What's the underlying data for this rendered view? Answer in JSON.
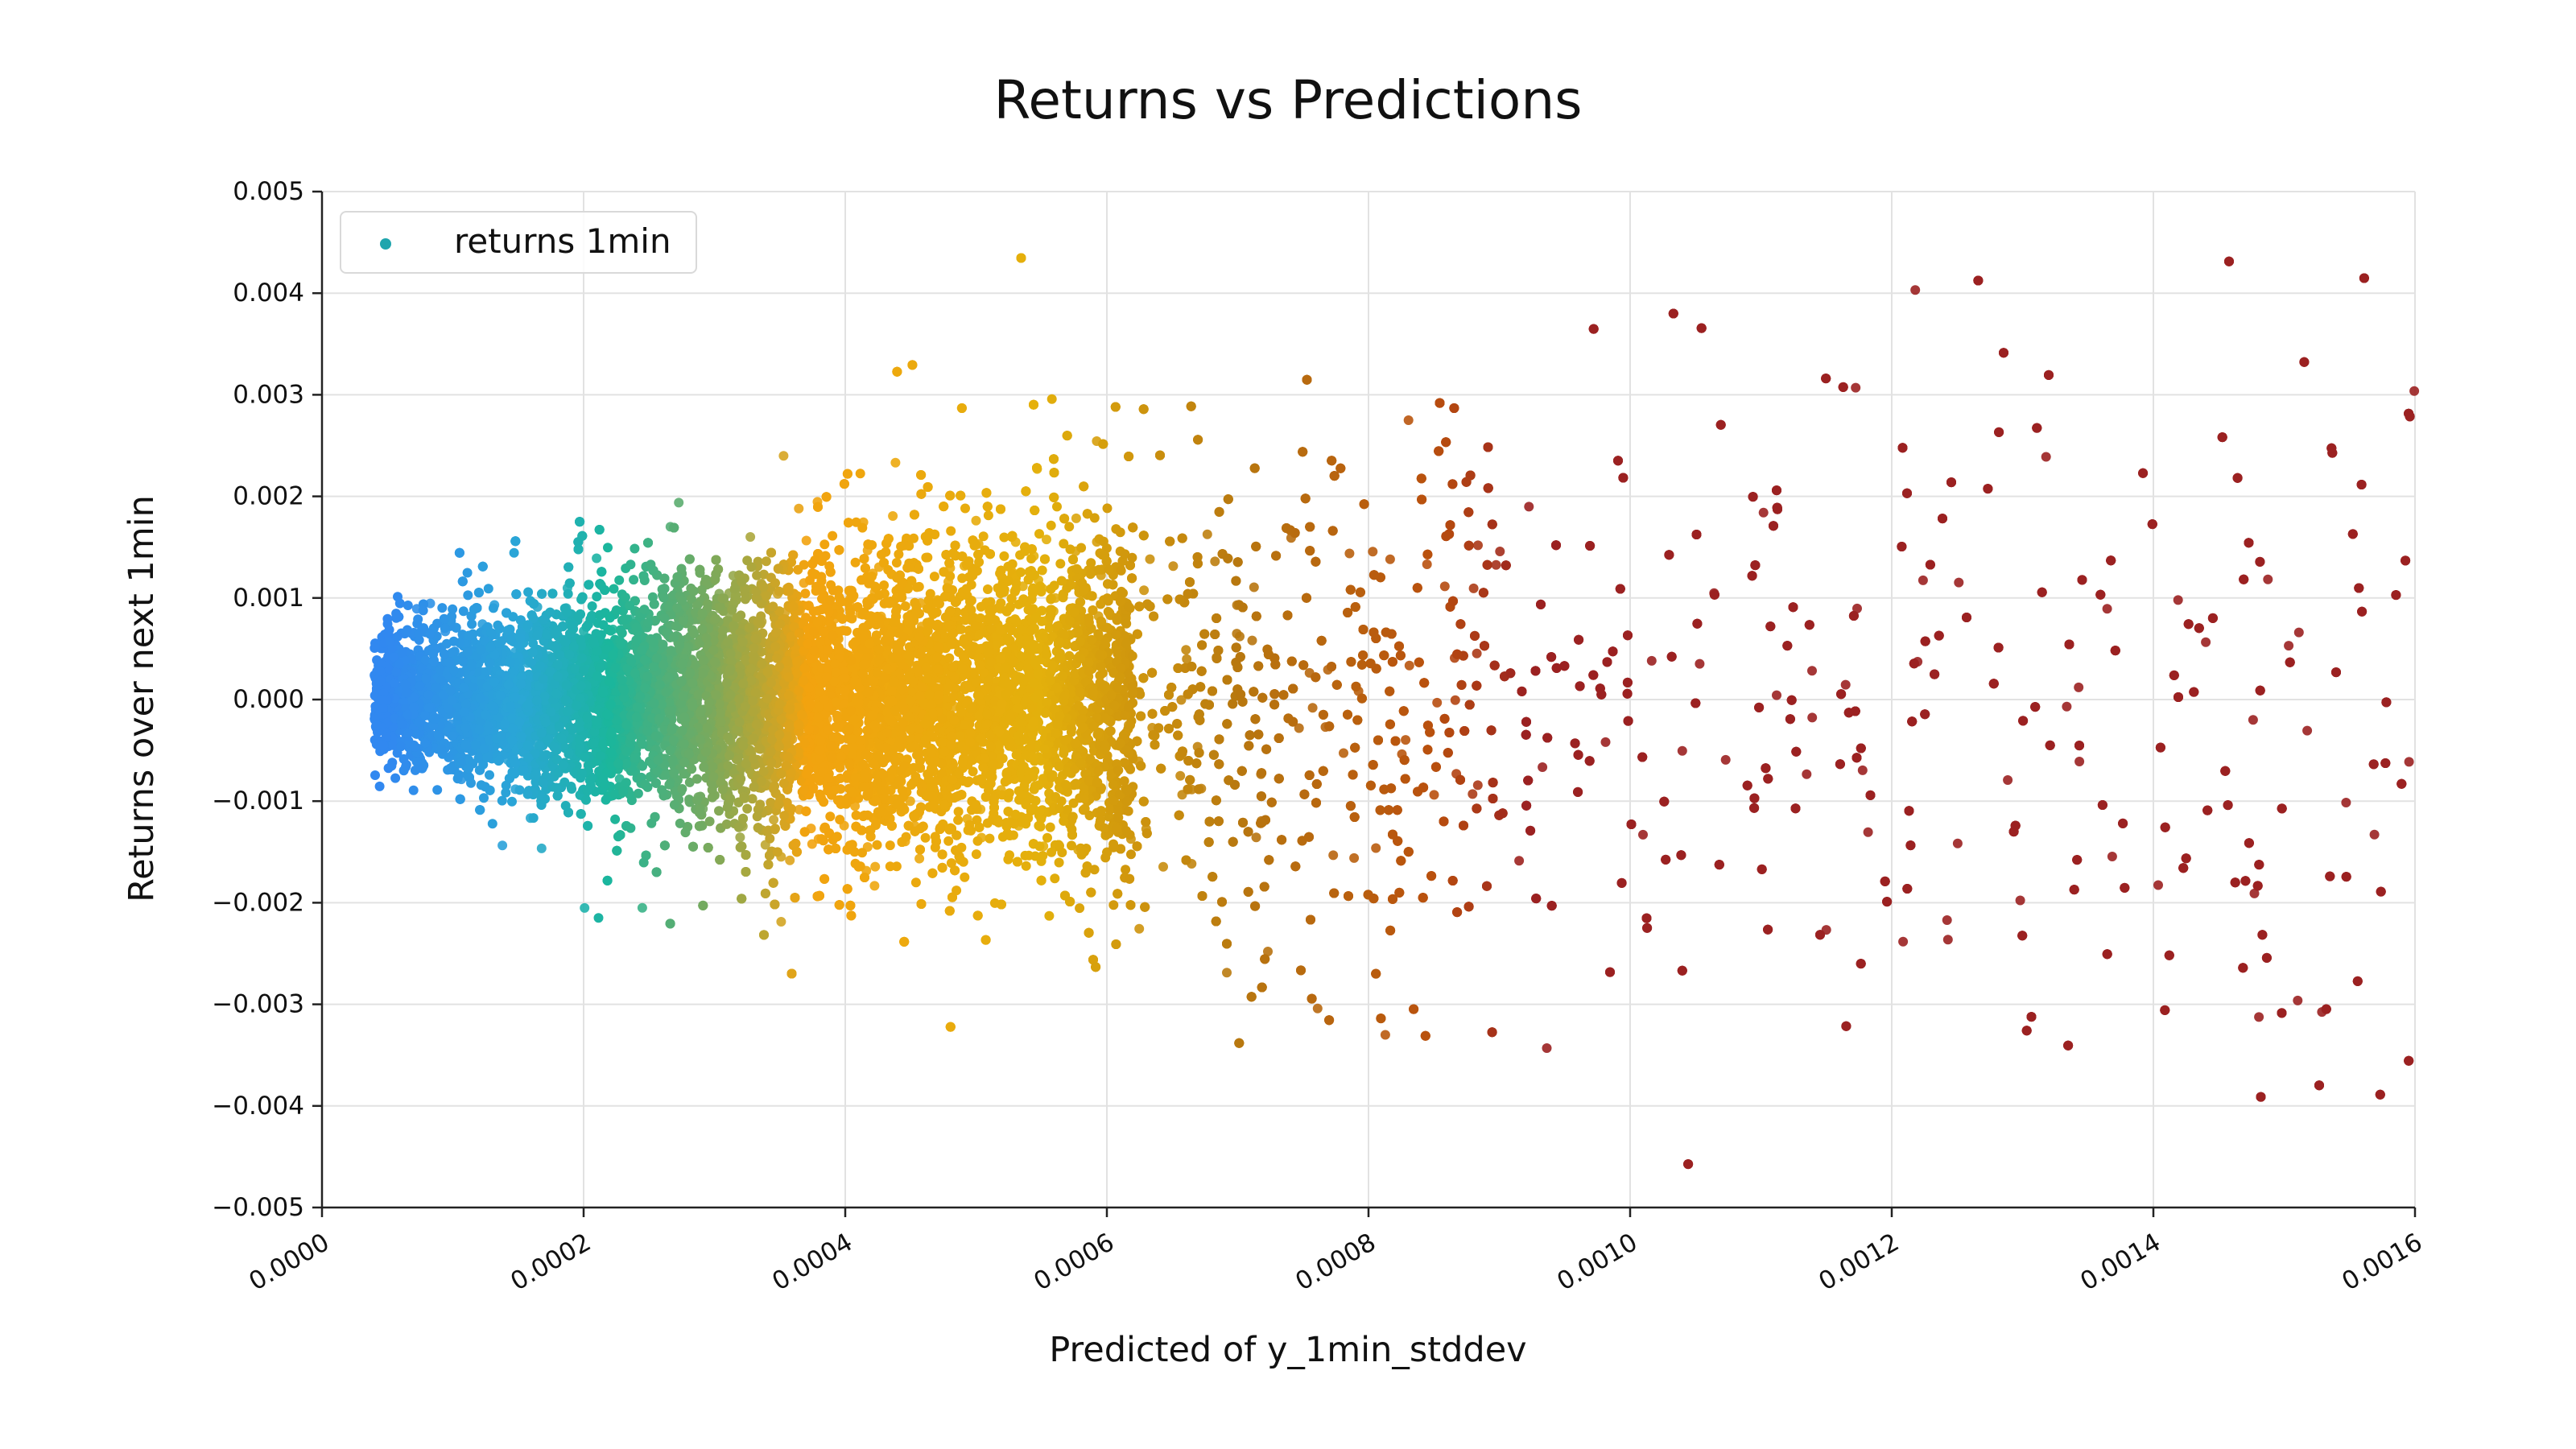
{
  "chart_data": {
    "type": "scatter",
    "title": "Returns vs Predictions",
    "xlabel": "Predicted of y_1min_stddev",
    "ylabel": "Returns over next 1min",
    "xlim": [
      0.0,
      0.0016
    ],
    "ylim": [
      -0.005,
      0.005
    ],
    "grid": true,
    "legend_position": "top-left",
    "xticks": [
      "0.0000",
      "0.0002",
      "0.0004",
      "0.0006",
      "0.0008",
      "0.0010",
      "0.0012",
      "0.0014",
      "0.0016"
    ],
    "yticks": [
      "0.005",
      "0.004",
      "0.003",
      "0.002",
      "0.001",
      "0.000",
      "−0.001",
      "−0.002",
      "−0.003",
      "−0.004",
      "−0.005"
    ],
    "series": [
      {
        "name": "returns 1min",
        "legend_color": "#1fa5ad",
        "approx_points": 60000,
        "x_min": 4e-05,
        "x_max": 0.0016,
        "x_density_peak": 0.0003,
        "y_mean": 0.0,
        "y_spread_note": "returns fan out: std grows roughly linearly with prediction (~1.1 x predicted)",
        "color_gradient": [
          {
            "x": 5e-05,
            "color": "#3188f0"
          },
          {
            "x": 0.00015,
            "color": "#2aa6d6"
          },
          {
            "x": 0.00022,
            "color": "#1bb69c"
          },
          {
            "x": 0.0003,
            "color": "#7ea95a"
          },
          {
            "x": 0.00037,
            "color": "#f2a30f"
          },
          {
            "x": 0.00055,
            "color": "#e3b00c"
          },
          {
            "x": 0.0007,
            "color": "#b8780f"
          },
          {
            "x": 0.00085,
            "color": "#b9500e"
          },
          {
            "x": 0.00092,
            "color": "#9b2121"
          },
          {
            "x": 0.0016,
            "color": "#9b2121"
          }
        ]
      }
    ]
  }
}
